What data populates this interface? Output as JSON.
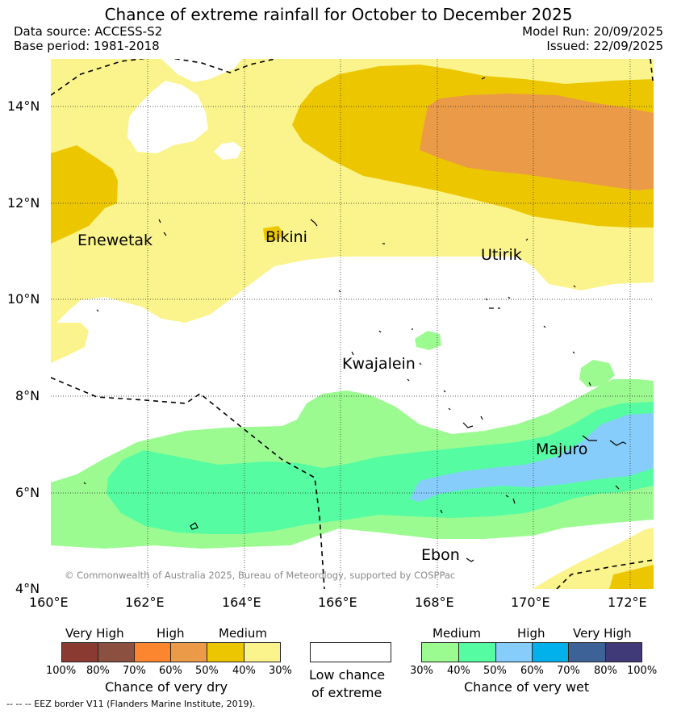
{
  "title": "Chance of extreme rainfall for October to December 2025",
  "header": {
    "data_source": "Data source: ACCESS-S2",
    "base_period": "Base period: 1981-2018",
    "model_run": "Model Run: 20/09/2025",
    "issued": "Issued: 22/09/2025"
  },
  "map": {
    "lat_labels": [
      "14°N",
      "12°N",
      "10°N",
      "8°N",
      "6°N",
      "4°N"
    ],
    "lon_labels": [
      "160°E",
      "162°E",
      "164°E",
      "166°E",
      "168°E",
      "170°E",
      "172°E"
    ],
    "places": {
      "enewetak": "Enewetak",
      "bikini": "Bikini",
      "utirik": "Utirik",
      "kwajalein": "Kwajalein",
      "majuro": "Majuro",
      "ebon": "Ebon"
    },
    "credit": "© Commonwealth of Australia 2025, Bureau of Meteorology, supported by COSPPac",
    "colors": {
      "dry_medium_40": "#fbf48c",
      "dry_medium_50": "#ecc700",
      "dry_high_60": "#eb9a48",
      "wet_medium_30": "#9bfb91",
      "wet_medium_40": "#55fca2",
      "wet_high_50": "#86cdfb"
    }
  },
  "legend": {
    "dry": {
      "headers": [
        "Very High",
        "High",
        "Medium"
      ],
      "ticks": [
        "100%",
        "80%",
        "70%",
        "60%",
        "50%",
        "40%",
        "30%"
      ],
      "colors": [
        "#8b3a32",
        "#8b5040",
        "#fc8630",
        "#eb9a48",
        "#ecc700",
        "#fbf48c"
      ],
      "title": "Chance of very dry"
    },
    "neutral": {
      "line1": "Low chance",
      "line2": "of extreme",
      "color": "#ffffff"
    },
    "wet": {
      "headers": [
        "Medium",
        "High",
        "Very High"
      ],
      "ticks": [
        "30%",
        "40%",
        "50%",
        "60%",
        "70%",
        "80%",
        "100%"
      ],
      "colors": [
        "#9bfb91",
        "#55fca2",
        "#86cdfb",
        "#00b1ec",
        "#3c6298",
        "#403a78"
      ],
      "title": "Chance of very wet"
    }
  },
  "footnote": "--  --  -- EEZ border V11 (Flanders Marine Institute, 2019)."
}
